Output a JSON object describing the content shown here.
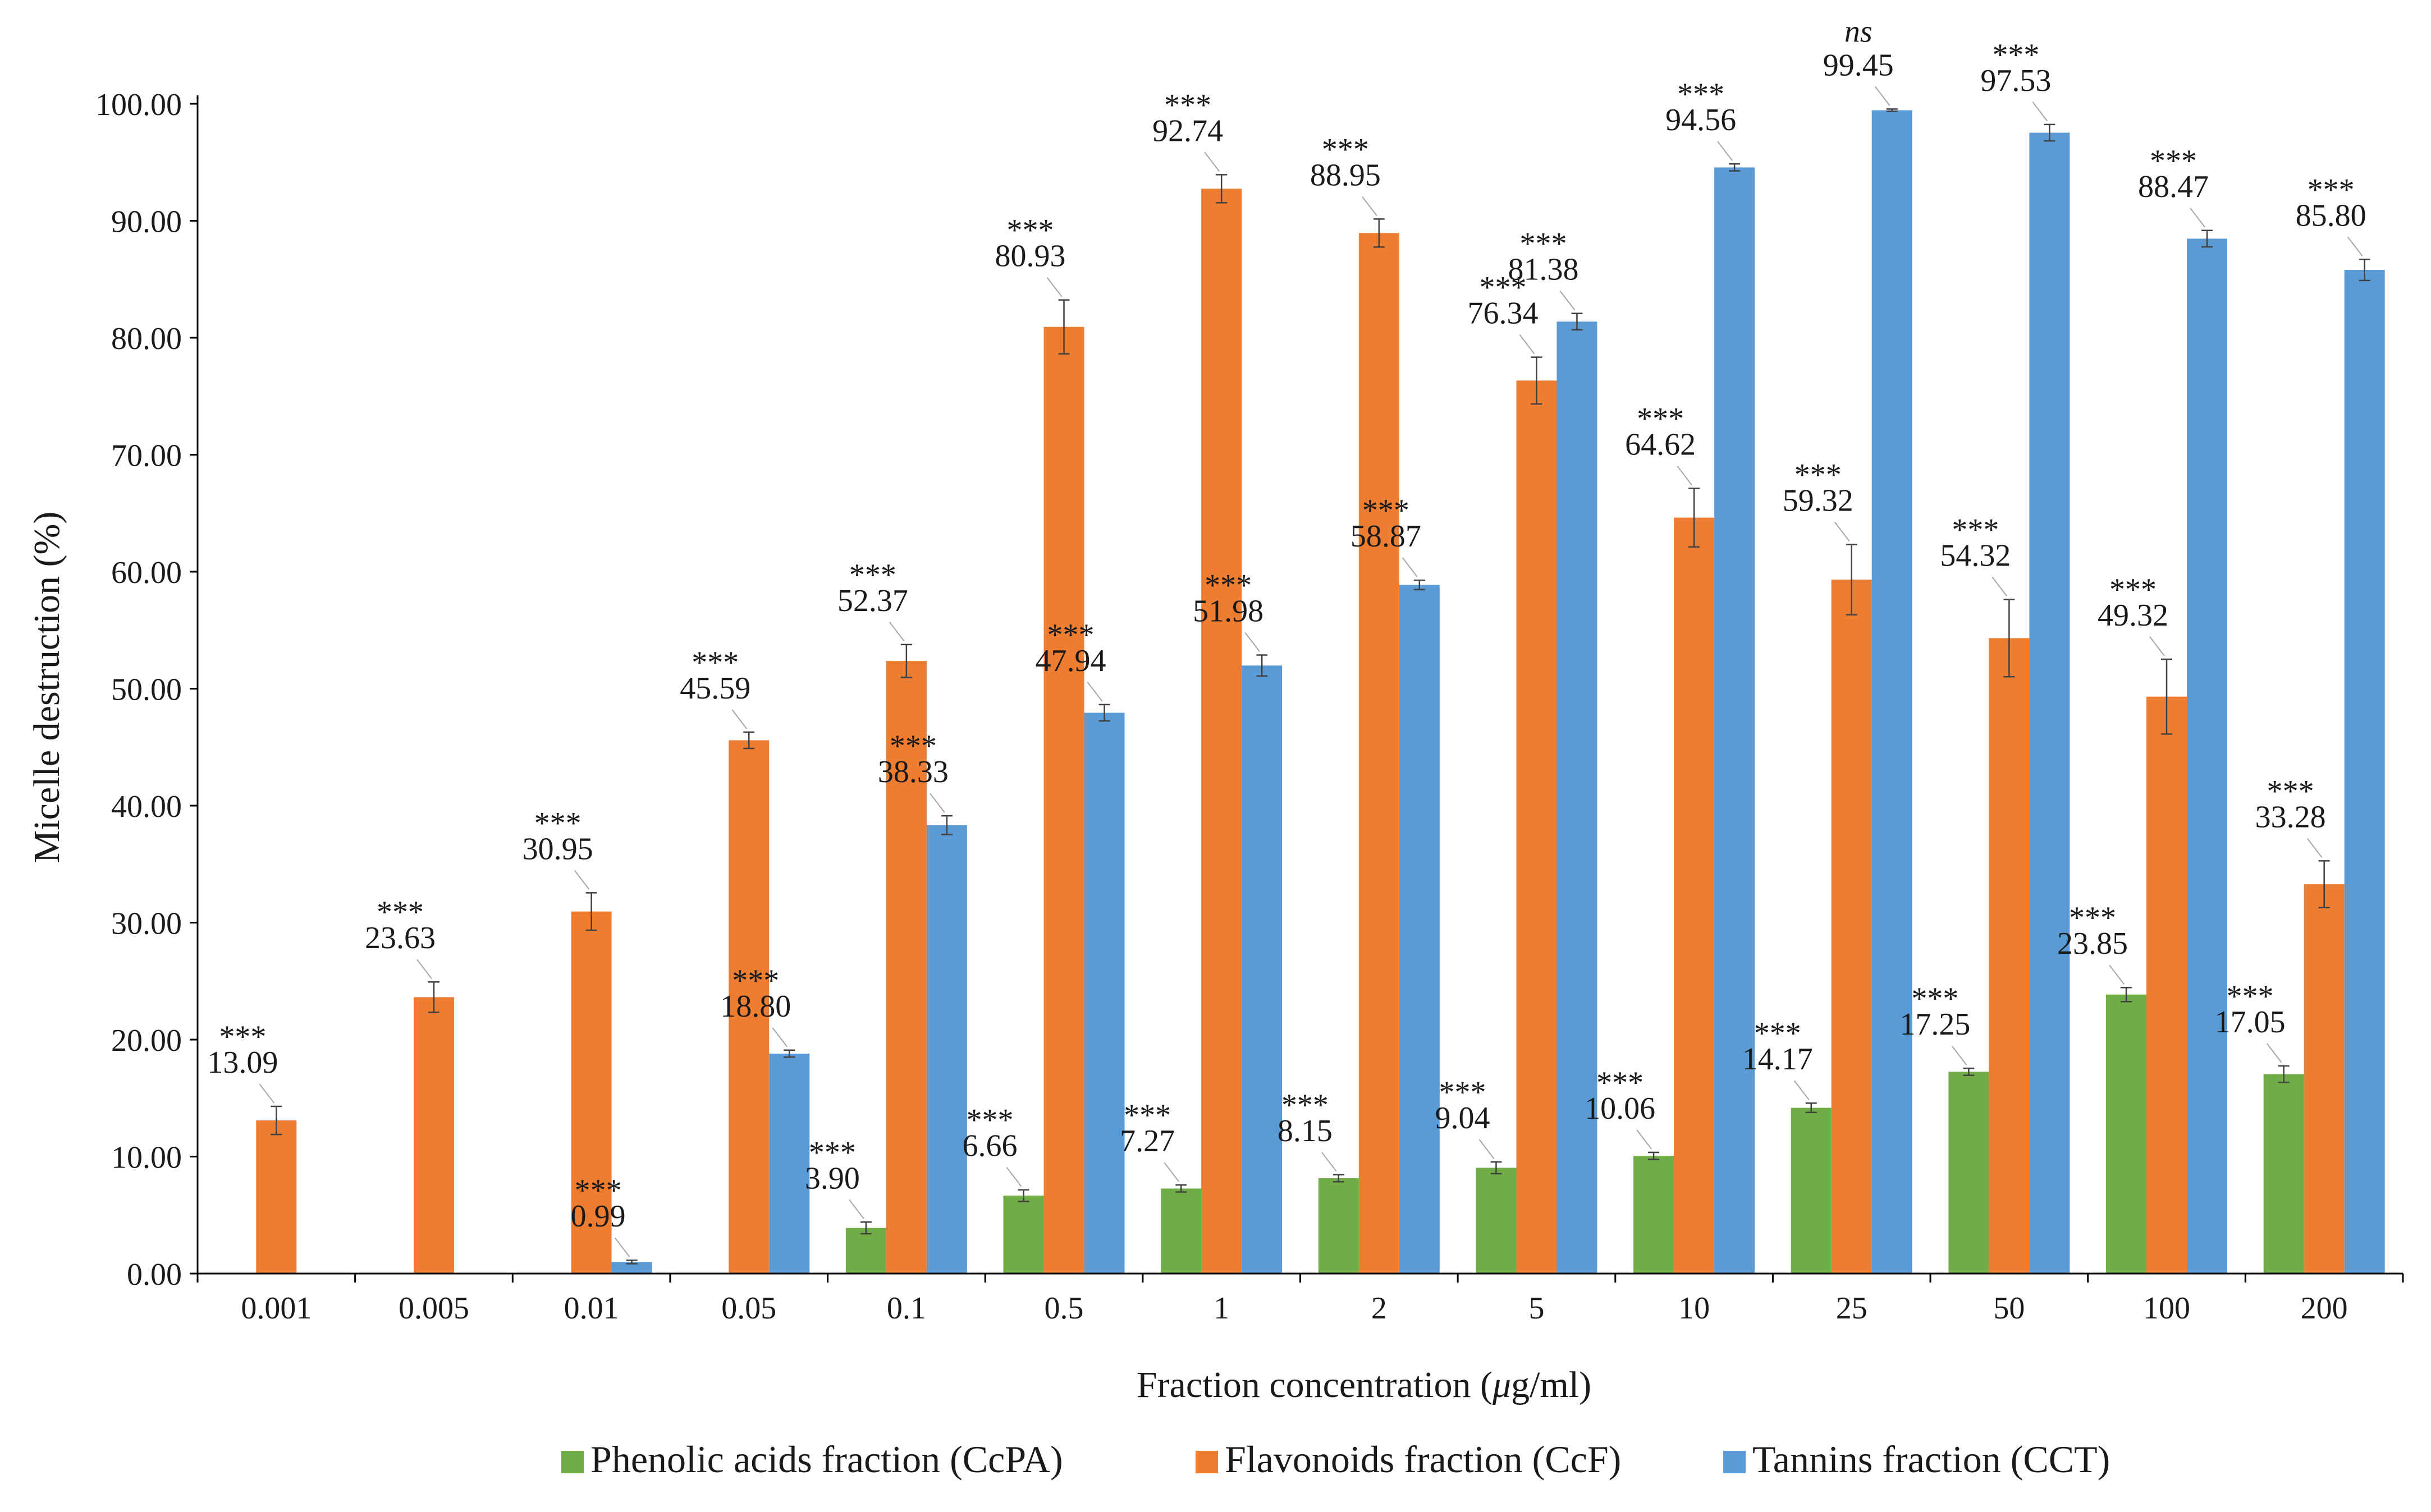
{
  "chart_data": {
    "type": "bar",
    "title": "",
    "xlabel": "Fraction concentration (μg/ml)",
    "ylabel": "Micelle destruction (%)",
    "ylim": [
      0,
      100
    ],
    "y_tick_labels": [
      "0.00",
      "10.00",
      "20.00",
      "30.00",
      "40.00",
      "50.00",
      "60.00",
      "70.00",
      "80.00",
      "90.00",
      "100.00"
    ],
    "grid": false,
    "legend_position": "bottom",
    "categories": [
      "0.001",
      "0.005",
      "0.01",
      "0.05",
      "0.1",
      "0.5",
      "1",
      "2",
      "5",
      "10",
      "25",
      "50",
      "100",
      "200"
    ],
    "series": [
      {
        "name": "Phenolic acids fraction (CcPA)",
        "color": "#70ad47",
        "values": [
          null,
          null,
          null,
          null,
          3.9,
          6.66,
          7.27,
          8.15,
          9.04,
          10.06,
          14.17,
          17.25,
          23.85,
          17.05
        ],
        "labels": [
          "",
          "",
          "",
          "",
          "3.90",
          "6.66",
          "7.27",
          "8.15",
          "9.04",
          "10.06",
          "14.17",
          "17.25",
          "23.85",
          "17.05"
        ],
        "errors": [
          null,
          null,
          null,
          null,
          0.5,
          0.5,
          0.3,
          0.3,
          0.5,
          0.3,
          0.4,
          0.3,
          0.6,
          0.7
        ],
        "significance": [
          "",
          "",
          "",
          "",
          "***",
          "***",
          "***",
          "***",
          "***",
          "***",
          "***",
          "***",
          "***",
          "***"
        ]
      },
      {
        "name": "Flavonoids fraction (CcF)",
        "color": "#ed7d31",
        "values": [
          13.09,
          23.63,
          30.95,
          45.59,
          52.37,
          80.93,
          92.74,
          88.95,
          76.34,
          64.62,
          59.32,
          54.32,
          49.32,
          33.28
        ],
        "labels": [
          "13.09",
          "23.63",
          "30.95",
          "45.59",
          "52.37",
          "80.93",
          "92.74",
          "88.95",
          "76.34",
          "64.62",
          "59.32",
          "54.32",
          "49.32",
          "33.28"
        ],
        "errors": [
          1.2,
          1.3,
          1.6,
          0.7,
          1.4,
          2.3,
          1.2,
          1.2,
          2.0,
          2.5,
          3.0,
          3.3,
          3.2,
          2.0
        ],
        "significance": [
          "***",
          "***",
          "***",
          "***",
          "***",
          "***",
          "***",
          "***",
          "***",
          "***",
          "***",
          "***",
          "***",
          "***"
        ]
      },
      {
        "name": "Tannins fraction (CCT)",
        "color": "#5b9bd5",
        "values": [
          null,
          null,
          0.99,
          18.8,
          38.33,
          47.94,
          51.98,
          58.87,
          81.38,
          94.56,
          99.45,
          97.53,
          88.47,
          85.8
        ],
        "labels": [
          "",
          "",
          "0.99",
          "18.80",
          "38.33",
          "47.94",
          "51.98",
          "58.87",
          "81.38",
          "94.56",
          "99.45",
          "97.53",
          "88.47",
          "85.80"
        ],
        "errors": [
          null,
          null,
          0.15,
          0.3,
          0.8,
          0.7,
          0.9,
          0.4,
          0.7,
          0.3,
          0.1,
          0.7,
          0.7,
          0.9
        ],
        "significance": [
          "",
          "",
          "***",
          "***",
          "***",
          "***",
          "***",
          "***",
          "***",
          "***",
          "ns",
          "***",
          "***",
          "***"
        ]
      }
    ]
  }
}
